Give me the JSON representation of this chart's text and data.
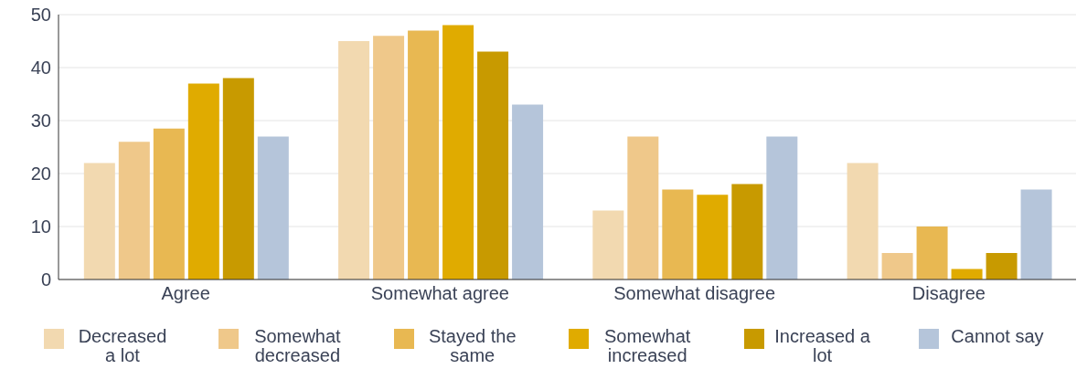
{
  "chart_data": {
    "type": "bar",
    "categories": [
      "Agree",
      "Somewhat agree",
      "Somewhat disagree",
      "Disagree"
    ],
    "series": [
      {
        "name": "Decreased a lot",
        "color": "#f2d9b0",
        "values": [
          22,
          45,
          13,
          22
        ]
      },
      {
        "name": "Somewhat decreased",
        "color": "#efc88a",
        "values": [
          26,
          46,
          27,
          5
        ]
      },
      {
        "name": "Stayed the same",
        "color": "#e8b852",
        "values": [
          28.5,
          47,
          17,
          10
        ]
      },
      {
        "name": "Somewhat increased",
        "color": "#e0ab00",
        "values": [
          37,
          48,
          16,
          2
        ]
      },
      {
        "name": "Increased a lot",
        "color": "#c89a00",
        "values": [
          38,
          43,
          18,
          5
        ]
      },
      {
        "name": "Cannot say",
        "color": "#b5c5da",
        "values": [
          27,
          33,
          27,
          17
        ]
      }
    ],
    "ylim": [
      0,
      50
    ],
    "yticks": [
      0,
      10,
      20,
      30,
      40,
      50
    ],
    "grid": "y",
    "legend": "bottom"
  }
}
